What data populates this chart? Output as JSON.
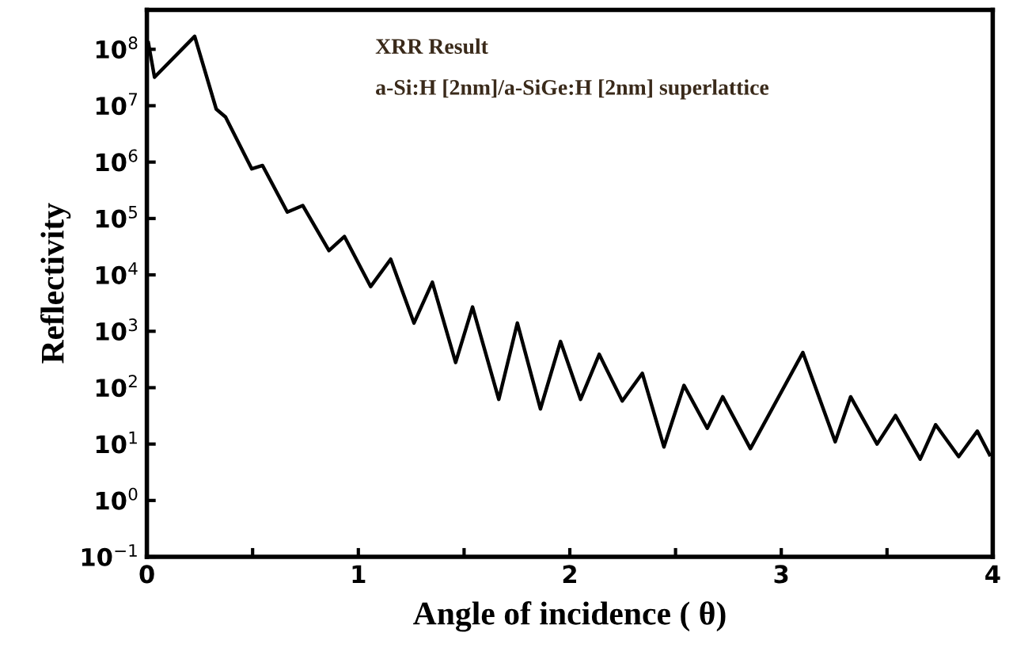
{
  "chart_data": {
    "type": "line",
    "xlabel": "Angle of incidence ( θ)",
    "ylabel": "Reflectivity",
    "annotations": [
      "XRR Result",
      "a-Si:H [2nm]/a-SiGe:H [2nm] superlattice"
    ],
    "log": "y",
    "grid": false,
    "marker": "none",
    "line_style": "solid",
    "xlim": [
      0,
      4
    ],
    "ylim": [
      0.1,
      500000000
    ],
    "xticks": [
      0,
      {
        "value": 0.5,
        "label": null
      },
      1,
      {
        "value": 1.5,
        "label": null
      },
      2,
      {
        "value": 2.5,
        "label": null
      },
      3,
      {
        "value": 3.5,
        "label": null
      },
      4
    ],
    "yticks": [
      {
        "value": 0.1,
        "label": "10$^{−1}$"
      },
      {
        "value": 1,
        "label": "10$^{0}$"
      },
      {
        "value": 10,
        "label": "10$^{1}$"
      },
      {
        "value": 100,
        "label": "10$^{2}$"
      },
      {
        "value": 1000,
        "label": "10$^{3}$"
      },
      {
        "value": 10000,
        "label": "10$^{4}$"
      },
      {
        "value": 100000,
        "label": "10$^{5}$"
      },
      {
        "value": 1000000,
        "label": "10$^{6}$"
      },
      {
        "value": 10000000,
        "label": "10$^{7}$"
      },
      {
        "value": 100000000,
        "label": "10$^{8}$"
      }
    ],
    "series": [
      {
        "color": "#000000",
        "x": [
          0.007,
          0.036,
          0.226,
          0.328,
          0.372,
          0.496,
          0.547,
          0.664,
          0.737,
          0.861,
          0.934,
          1.058,
          1.153,
          1.263,
          1.35,
          1.46,
          1.54,
          1.664,
          1.752,
          1.861,
          1.956,
          2.051,
          2.139,
          2.248,
          2.343,
          2.445,
          2.54,
          2.65,
          2.723,
          2.854,
          3.102,
          3.255,
          3.328,
          3.453,
          3.54,
          3.657,
          3.73,
          3.839,
          3.927,
          3.985
        ],
        "values": [
          130000000,
          32000000,
          170000000,
          8700000,
          6300000,
          760000,
          870000,
          130000,
          170000,
          27000,
          48000,
          6200,
          19000,
          1400,
          7400,
          280,
          2700,
          62,
          1400,
          42,
          660,
          62,
          390,
          58,
          180,
          8.9,
          110,
          19,
          69,
          8.3,
          420,
          11,
          69,
          10,
          32,
          5.4,
          22,
          6.0,
          17,
          6.5
        ]
      }
    ]
  }
}
